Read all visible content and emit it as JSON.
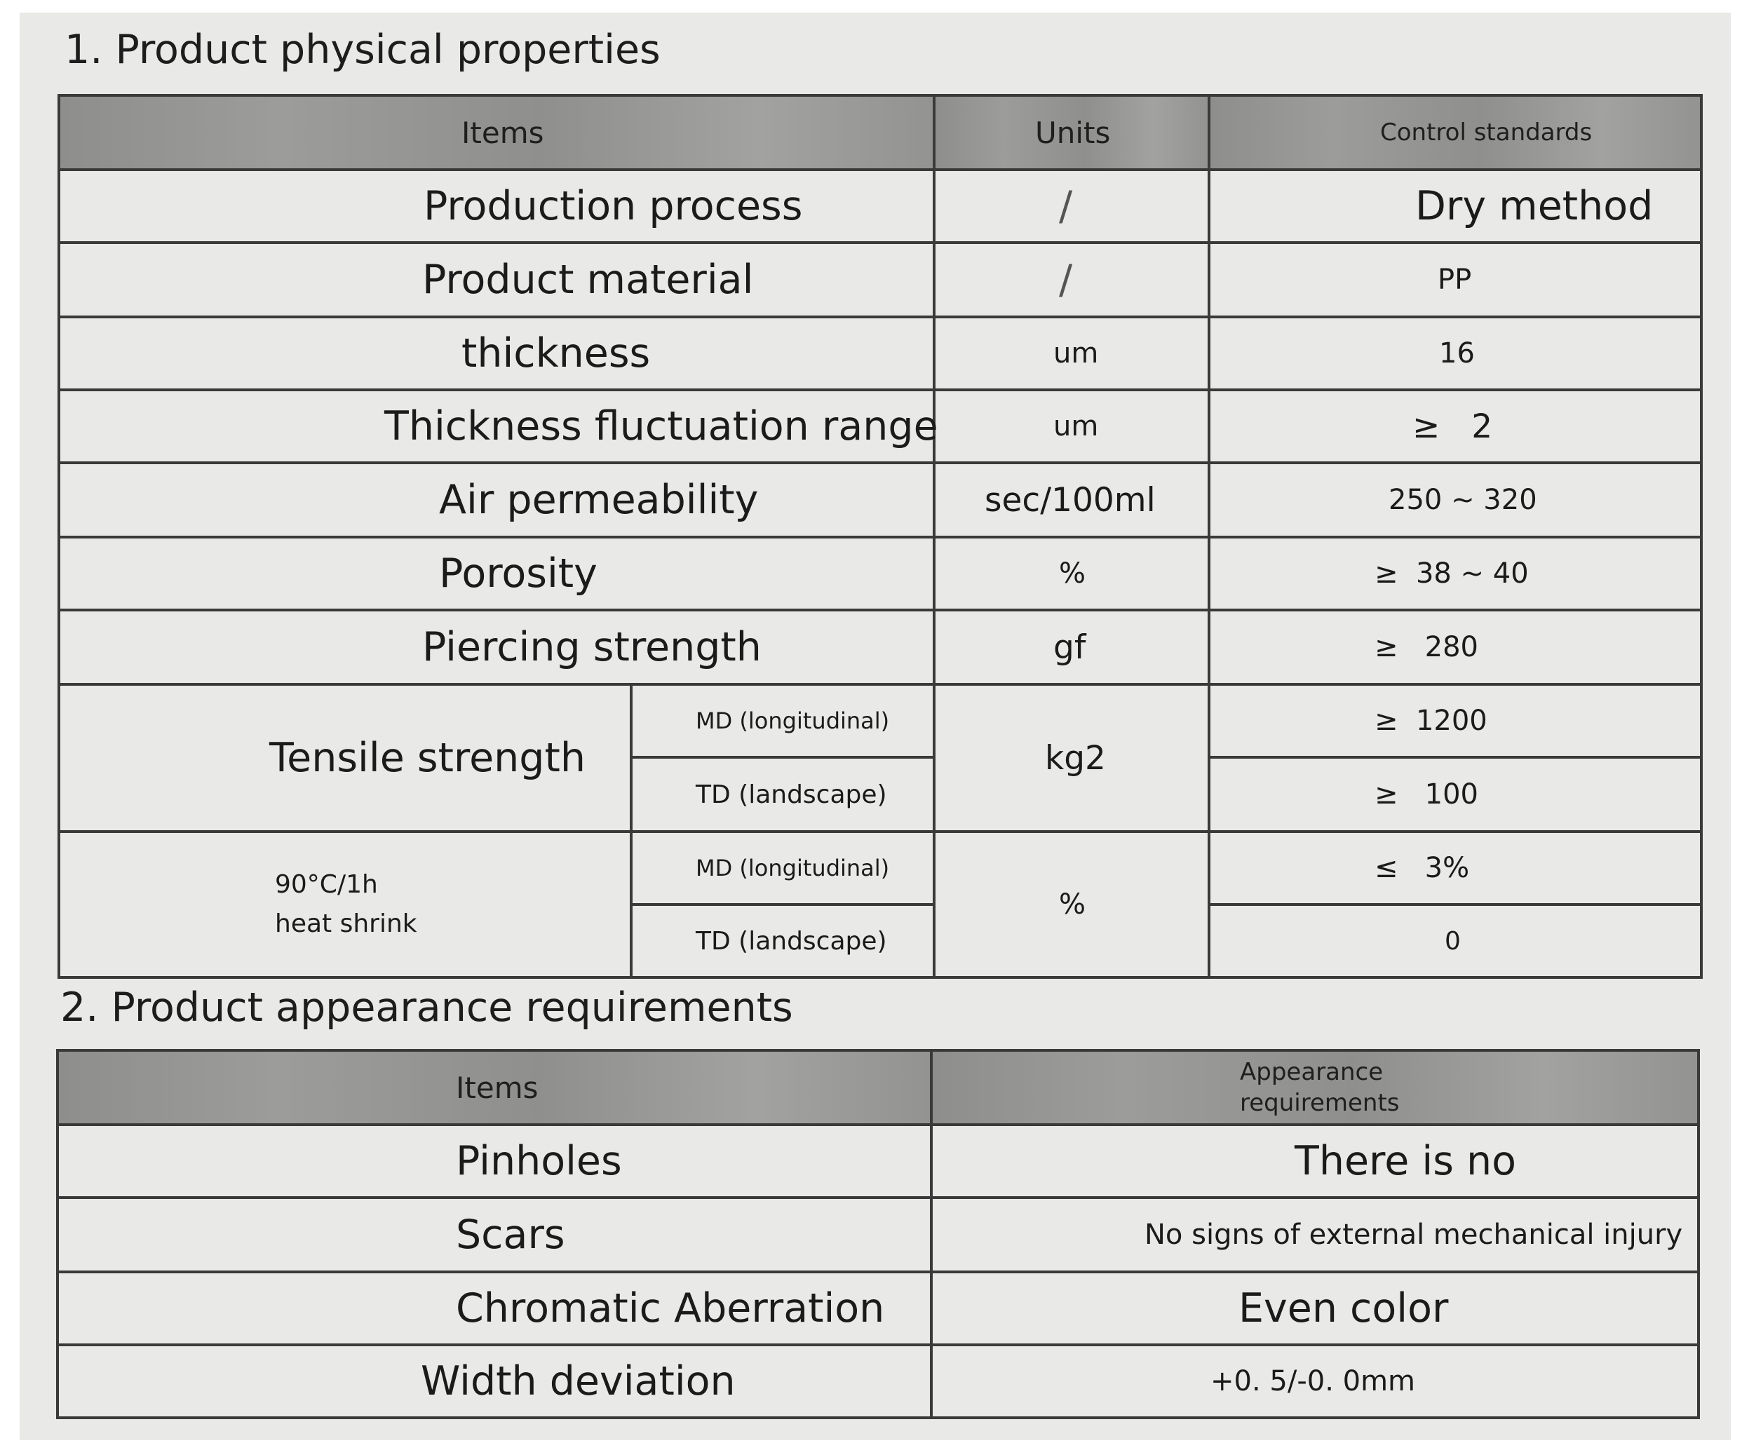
{
  "section1": {
    "title": "1. Product physical properties",
    "headers": {
      "items": "Items",
      "units": "Units",
      "control": "Control standards"
    },
    "rows": [
      {
        "item": "Production process",
        "unit": "/",
        "standard": "Dry method"
      },
      {
        "item": "Product material",
        "unit": "/",
        "standard": "PP"
      },
      {
        "item": "thickness",
        "unit": "um",
        "standard": "16"
      },
      {
        "item": "Thickness fluctuation range",
        "unit": "um",
        "standard": "≥   2"
      },
      {
        "item": "Air permeability",
        "unit": "sec/100ml",
        "standard": "250 ~ 320"
      },
      {
        "item": "Porosity",
        "unit": "%",
        "standard": "≥  38 ~ 40"
      },
      {
        "item": "Piercing strength",
        "unit": "gf",
        "standard": "≥   280"
      }
    ],
    "tensile": {
      "item": "Tensile strength",
      "unit": "kg2",
      "md_label": "MD (longitudinal)",
      "md_value": "≥  1200",
      "td_label": "TD (landscape)",
      "td_value": "≥   100"
    },
    "shrink": {
      "item_line1": "90°C/1h",
      "item_line2": "heat shrink",
      "unit": "%",
      "md_label": "MD (longitudinal)",
      "md_value": "≤   3%",
      "td_label": "TD (landscape)",
      "td_value": "0"
    }
  },
  "section2": {
    "title": "2. Product appearance requirements",
    "headers": {
      "items": "Items",
      "appearance": "Appearance requirements"
    },
    "rows": [
      {
        "item": "Pinholes",
        "requirement": "There is no"
      },
      {
        "item": "Scars",
        "requirement": "No signs of external mechanical injury"
      },
      {
        "item": "Chromatic Aberration",
        "requirement": "Even color"
      },
      {
        "item": "Width deviation",
        "requirement": "+0. 5/-0. 0mm"
      }
    ]
  }
}
